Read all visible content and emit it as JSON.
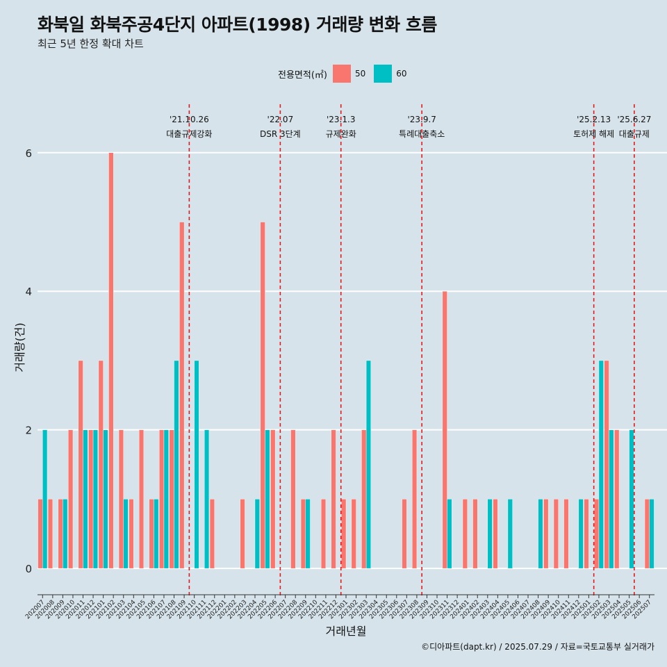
{
  "title": "화북일 화북주공4단지 아파트(1998) 거래량 변화 흐름",
  "subtitle": "최근 5년 한정 확대 차트",
  "caption": "©디아파트(dapt.kr) / 2025.07.29 / 자료=국토교통부 실거래가",
  "legend": {
    "title": "전용면적(㎡)",
    "items": [
      {
        "label": "50",
        "color": "#f8766d"
      },
      {
        "label": "60",
        "color": "#00bfc4"
      }
    ]
  },
  "chart_data": {
    "type": "bar",
    "title": "화북일 화북주공4단지 아파트(1998) 거래량 변화 흐름",
    "xlabel": "거래년월",
    "ylabel": "거래량(건)",
    "ylim": [
      -0.3,
      6.7
    ],
    "yticks": [
      0,
      2,
      4,
      6
    ],
    "categories": [
      "202007",
      "202008",
      "202009",
      "202010",
      "202011",
      "202012",
      "202101",
      "202102",
      "202103",
      "202104",
      "202105",
      "202106",
      "202107",
      "202108",
      "202109",
      "202110",
      "202111",
      "202112",
      "202201",
      "202202",
      "202203",
      "202204",
      "202205",
      "202206",
      "202207",
      "202208",
      "202209",
      "202210",
      "202211",
      "202212",
      "202301",
      "202302",
      "202303",
      "202304",
      "202305",
      "202306",
      "202307",
      "202308",
      "202309",
      "202310",
      "202311",
      "202312",
      "202401",
      "202402",
      "202403",
      "202404",
      "202405",
      "202406",
      "202407",
      "202408",
      "202409",
      "202410",
      "202411",
      "202412",
      "202501",
      "202502",
      "202503",
      "202504",
      "202505",
      "202506",
      "202507"
    ],
    "series": [
      {
        "name": "50",
        "color": "#f8766d",
        "values": [
          1,
          1,
          1,
          2,
          3,
          2,
          3,
          6,
          2,
          1,
          2,
          1,
          2,
          2,
          5,
          0,
          0,
          1,
          0,
          0,
          1,
          0,
          5,
          2,
          0,
          2,
          1,
          0,
          1,
          2,
          1,
          1,
          2,
          0,
          0,
          0,
          1,
          2,
          0,
          0,
          4,
          0,
          1,
          1,
          0,
          1,
          0,
          0,
          0,
          0,
          1,
          1,
          1,
          0,
          1,
          1,
          3,
          2,
          0,
          0,
          1
        ]
      },
      {
        "name": "60",
        "color": "#00bfc4",
        "values": [
          2,
          0,
          1,
          0,
          2,
          2,
          2,
          0,
          1,
          0,
          0,
          1,
          2,
          3,
          0,
          3,
          2,
          0,
          0,
          0,
          0,
          1,
          2,
          0,
          0,
          0,
          1,
          0,
          0,
          0,
          0,
          0,
          3,
          0,
          0,
          0,
          0,
          0,
          0,
          0,
          1,
          0,
          0,
          0,
          1,
          0,
          1,
          0,
          0,
          1,
          0,
          0,
          0,
          1,
          0,
          3,
          2,
          0,
          2,
          0,
          1
        ]
      }
    ],
    "events": [
      {
        "date": "'21.10.26",
        "label": "대출규제강화",
        "at_category": "202110"
      },
      {
        "date": "'22.07",
        "label": "DSR 3단계",
        "at_category": "202207"
      },
      {
        "date": "'23.1.3",
        "label": "규제완화",
        "at_category": "202301"
      },
      {
        "date": "'23.9.7",
        "label": "특례대출축소",
        "at_category": "202309"
      },
      {
        "date": "'25.2.13",
        "label": "토허제 해제",
        "at_category": "202502"
      },
      {
        "date": "'25.6.27",
        "label": "대출규제",
        "at_category": "202506"
      }
    ]
  }
}
